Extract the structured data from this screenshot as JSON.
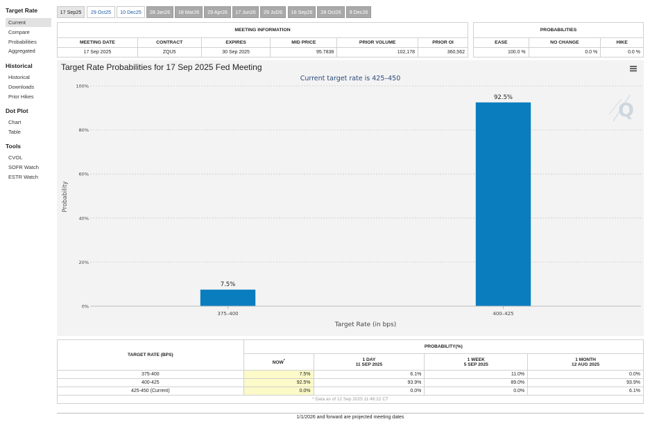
{
  "sidebar": {
    "sections": [
      {
        "title": "Target Rate",
        "items": [
          "Current",
          "Compare",
          "Probabilities",
          "Aggregated"
        ]
      },
      {
        "title": "Historical",
        "items": [
          "Historical",
          "Downloads",
          "Prior Hikes"
        ]
      },
      {
        "title": "Dot Plot",
        "items": [
          "Chart",
          "Table"
        ]
      },
      {
        "title": "Tools",
        "items": [
          "CVOL",
          "SOFR Watch",
          "ESTR Watch"
        ]
      }
    ],
    "active_item": "Current"
  },
  "meeting_tabs": [
    "17 Sep25",
    "29 Oct25",
    "10 Dec25",
    "28 Jan26",
    "18 Mar26",
    "29 Apr26",
    "17 Jun26",
    "29 Jul26",
    "16 Sep26",
    "28 Oct26",
    "9 Dec26"
  ],
  "meeting_info": {
    "title": "MEETING INFORMATION",
    "headers": [
      "MEETING DATE",
      "CONTRACT",
      "EXPIRES",
      "MID PRICE",
      "PRIOR VOLUME",
      "PRIOR OI"
    ],
    "row": [
      "17 Sep 2025",
      "ZQU5",
      "30 Sep 2025",
      "95.7838",
      "102,178",
      "360,562"
    ]
  },
  "probabilities": {
    "title": "PROBABILITIES",
    "headers": [
      "EASE",
      "NO CHANGE",
      "HIKE"
    ],
    "row": [
      "100.0 %",
      "0.0 %",
      "0.0 %"
    ]
  },
  "chart": {
    "title": "Target Rate Probabilities for 17 Sep 2025 Fed Meeting",
    "menu_icon": "hamburger-menu-icon",
    "watermark_icon": "q-logo-icon",
    "bar_color": "#0a7dbf"
  },
  "chart_data": {
    "type": "bar",
    "title": "Target Rate Probabilities for 17 Sep 2025 Fed Meeting",
    "subtitle": "Current target rate is 425–450",
    "categories": [
      "375–400",
      "400–425"
    ],
    "values": [
      7.5,
      92.5
    ],
    "data_labels": [
      "7.5%",
      "92.5%"
    ],
    "xlabel": "Target Rate (in bps)",
    "ylabel": "Probability",
    "ylim": [
      0,
      100
    ],
    "yticks": [
      "0%",
      "20%",
      "40%",
      "60%",
      "80%",
      "100%"
    ],
    "grid": true
  },
  "history": {
    "title": "PROBABILITY(%)",
    "target_header": "TARGET RATE (BPS)",
    "columns": [
      {
        "line1": "NOW",
        "mark": "*",
        "line2": ""
      },
      {
        "line1": "1 DAY",
        "line2": "11 SEP 2025"
      },
      {
        "line1": "1 WEEK",
        "line2": "5 SEP 2025"
      },
      {
        "line1": "1 MONTH",
        "line2": "12 AUG 2025"
      }
    ],
    "rows": [
      {
        "rate": "375-400",
        "values": [
          "7.5%",
          "6.1%",
          "11.0%",
          "0.0%"
        ]
      },
      {
        "rate": "400-425",
        "values": [
          "92.5%",
          "93.9%",
          "89.0%",
          "93.9%"
        ]
      },
      {
        "rate": "425-450 (Current)",
        "values": [
          "0.0%",
          "0.0%",
          "0.0%",
          "6.1%"
        ]
      }
    ],
    "data_note": "* Data as of 12 Sep 2025 11:46:22 CT"
  },
  "footer_note": "1/1/2026 and forward are projected meeting dates"
}
